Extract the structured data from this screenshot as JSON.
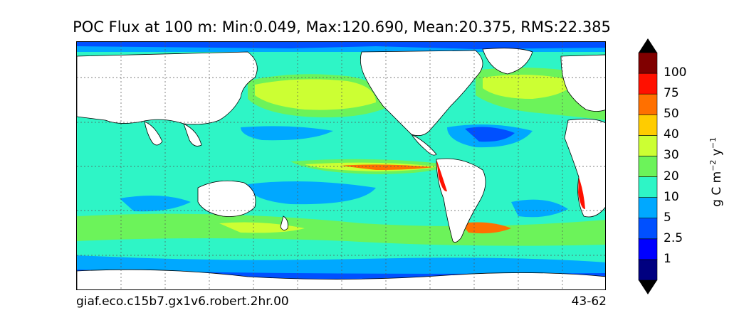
{
  "title": "POC Flux at 100 m: Min:0.049, Max:120.690, Mean:20.375, RMS:22.385",
  "caption_left": "giaf.eco.c15b7.gx1v6.robert.2hr.00",
  "caption_right": "43-62",
  "colorbar": {
    "units_prefix": "g C m",
    "units_exp1": "−2",
    "units_mid": " y",
    "units_exp2": "−1",
    "levels": [
      {
        "label": "1",
        "color": "#000080"
      },
      {
        "label": "2.5",
        "color": "#0000ff"
      },
      {
        "label": "5",
        "color": "#0050ff"
      },
      {
        "label": "10",
        "color": "#00a8ff"
      },
      {
        "label": "20",
        "color": "#2ef5c6"
      },
      {
        "label": "30",
        "color": "#6cf35a"
      },
      {
        "label": "40",
        "color": "#ccff33"
      },
      {
        "label": "50",
        "color": "#ffcc00"
      },
      {
        "label": "75",
        "color": "#ff7000"
      },
      {
        "label": "100",
        "color": "#ff1000"
      },
      {
        "label": "",
        "color": "#800000"
      }
    ],
    "under_color": "#000000",
    "over_color": "#000000"
  },
  "colors": {
    "land": "#ffffff",
    "ocean_base": "#2ef5c6",
    "grid": "#555555"
  }
}
